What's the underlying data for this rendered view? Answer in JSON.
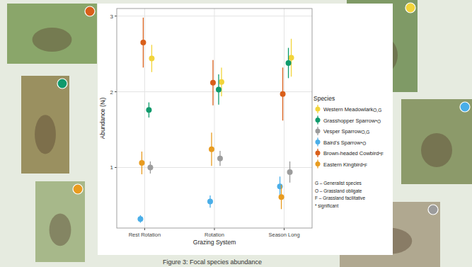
{
  "chart_data": {
    "type": "scatter",
    "caption": "Figure 3: Focal species abundance",
    "x_label": "Grazing System",
    "y_label": "Abundance (Nᵢ)",
    "categories": [
      "Rest Rotation",
      "Rotation",
      "Season Long"
    ],
    "ylim": [
      0.2,
      3.1
    ],
    "yticks": [
      1,
      2,
      3
    ],
    "grid": true,
    "legend": "right",
    "legend_title": "Species",
    "legend_notes": [
      "G – Generalist species",
      "O – Grassland obligate",
      "F – Grassland facilitative",
      "* significant"
    ],
    "series": [
      {
        "name": "Western Meadowlark",
        "superscript": "O,G",
        "color": "#f2d43a",
        "marker": "circle",
        "values": [
          2.44,
          2.13,
          2.45
        ],
        "errors": [
          0.18,
          0.19,
          0.25
        ]
      },
      {
        "name": "Grasshopper Sparrow",
        "superscript": "*O",
        "color": "#109a6c",
        "marker": "circle",
        "values": [
          1.76,
          2.03,
          2.38
        ],
        "errors": [
          0.1,
          0.2,
          0.2
        ]
      },
      {
        "name": "Vesper Sparrow",
        "superscript": "O,G",
        "color": "#9c9c9c",
        "marker": "circle",
        "values": [
          1.0,
          1.12,
          0.94
        ],
        "errors": [
          0.08,
          0.1,
          0.14
        ]
      },
      {
        "name": "Baird's Sparrow",
        "superscript": "*O",
        "color": "#4aaee8",
        "marker": "circle",
        "values": [
          0.32,
          0.55,
          0.75
        ],
        "errors": [
          0.05,
          0.08,
          0.13
        ]
      },
      {
        "name": "Brown-headed Cowbird",
        "superscript": "*F",
        "color": "#d95f1a",
        "marker": "circle",
        "values": [
          2.65,
          2.12,
          1.97
        ],
        "errors": [
          0.33,
          0.3,
          0.35
        ]
      },
      {
        "name": "Eastern Kingbird",
        "superscript": "*F",
        "color": "#e89b1f",
        "marker": "circle",
        "values": [
          1.06,
          1.24,
          0.61
        ],
        "errors": [
          0.15,
          0.22,
          0.16
        ]
      }
    ]
  }
}
